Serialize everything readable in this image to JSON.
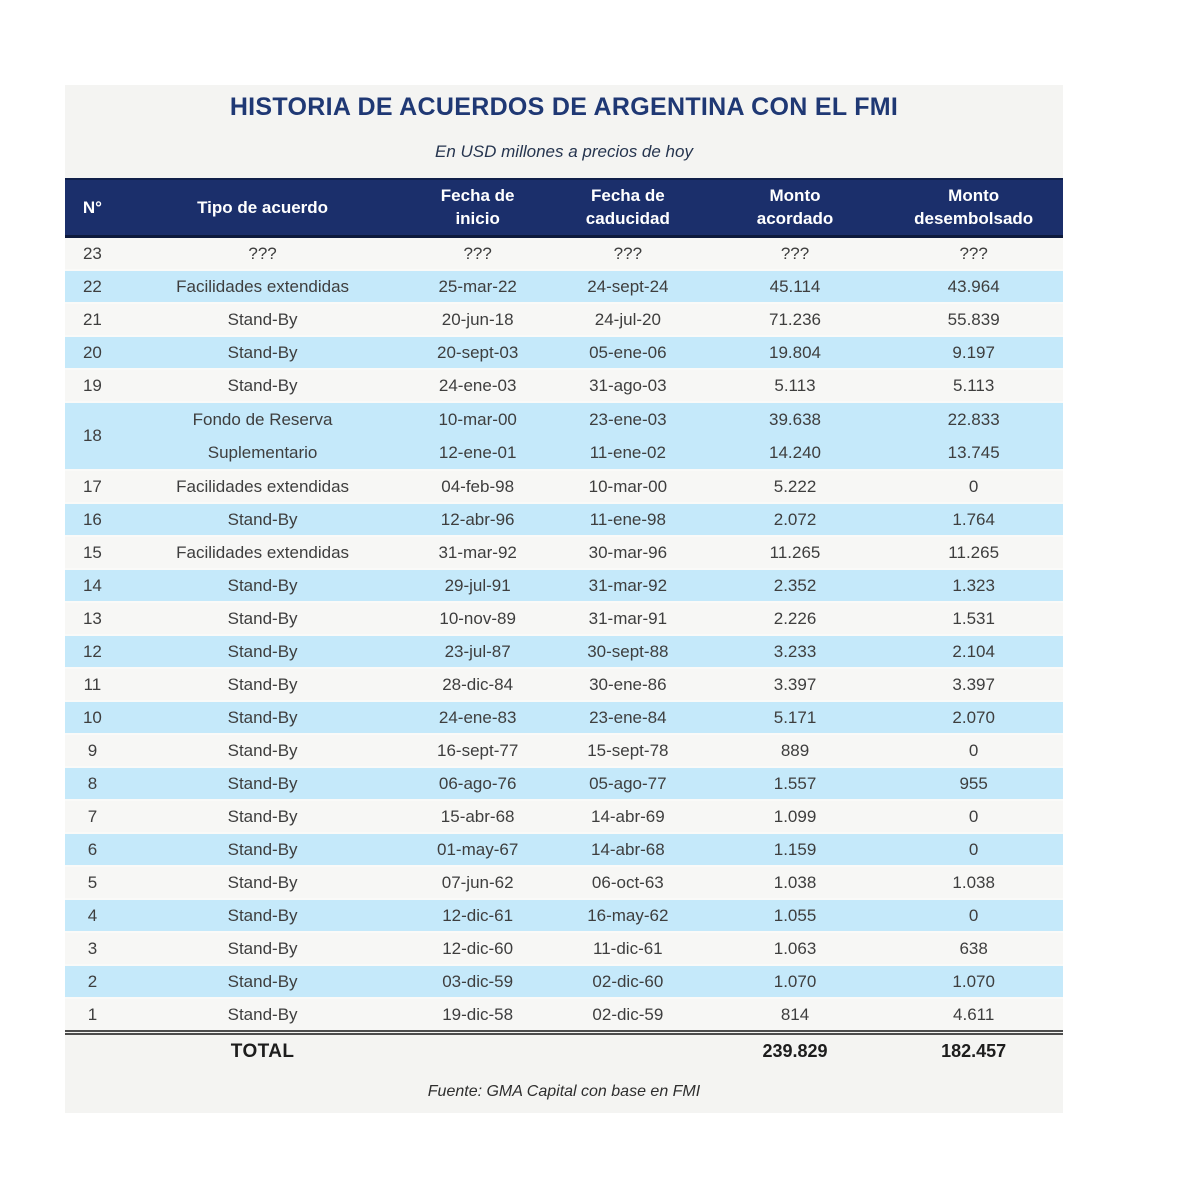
{
  "chart_data": {
    "type": "table",
    "title": "HISTORIA DE ACUERDOS DE ARGENTINA CON EL FMI",
    "subtitle": "En USD millones a precios de hoy",
    "source": "Fuente: GMA Capital con base en FMI",
    "colors": {
      "header_bg": "#1b2f6b",
      "row_blue": "#c5e9fa",
      "row_plain": "#f7f7f5",
      "container_bg": "#f4f4f2",
      "title_color": "#1f3874"
    },
    "columns": [
      {
        "id": "n",
        "label": [
          "N°"
        ]
      },
      {
        "id": "tipo",
        "label": [
          "Tipo de acuerdo"
        ]
      },
      {
        "id": "inicio",
        "label": [
          "Fecha de",
          "inicio"
        ]
      },
      {
        "id": "caducidad",
        "label": [
          "Fecha de",
          "caducidad"
        ]
      },
      {
        "id": "acordado",
        "label": [
          "Monto",
          "acordado"
        ]
      },
      {
        "id": "desembolsado",
        "label": [
          "Monto",
          "desembolsado"
        ]
      }
    ],
    "rows": [
      {
        "n": "23",
        "tipo": "???",
        "inicio": "???",
        "caducidad": "???",
        "acordado": "???",
        "desembolsado": "???"
      },
      {
        "n": "22",
        "tipo": "Facilidades extendidas",
        "inicio": "25-mar-22",
        "caducidad": "24-sept-24",
        "acordado": "45.114",
        "desembolsado": "43.964"
      },
      {
        "n": "21",
        "tipo": "Stand-By",
        "inicio": "20-jun-18",
        "caducidad": "24-jul-20",
        "acordado": "71.236",
        "desembolsado": "55.839"
      },
      {
        "n": "20",
        "tipo": "Stand-By",
        "inicio": "20-sept-03",
        "caducidad": "05-ene-06",
        "acordado": "19.804",
        "desembolsado": "9.197"
      },
      {
        "n": "19",
        "tipo": "Stand-By",
        "inicio": "24-ene-03",
        "caducidad": "31-ago-03",
        "acordado": "5.113",
        "desembolsado": "5.113"
      },
      {
        "n": "18",
        "tipo": [
          "Fondo de Reserva",
          "Suplementario"
        ],
        "inicio": [
          "10-mar-00",
          "12-ene-01"
        ],
        "caducidad": [
          "23-ene-03",
          "11-ene-02"
        ],
        "acordado": [
          "39.638",
          "14.240"
        ],
        "desembolsado": [
          "22.833",
          "13.745"
        ]
      },
      {
        "n": "17",
        "tipo": "Facilidades extendidas",
        "inicio": "04-feb-98",
        "caducidad": "10-mar-00",
        "acordado": "5.222",
        "desembolsado": "0"
      },
      {
        "n": "16",
        "tipo": "Stand-By",
        "inicio": "12-abr-96",
        "caducidad": "11-ene-98",
        "acordado": "2.072",
        "desembolsado": "1.764"
      },
      {
        "n": "15",
        "tipo": "Facilidades extendidas",
        "inicio": "31-mar-92",
        "caducidad": "30-mar-96",
        "acordado": "11.265",
        "desembolsado": "11.265"
      },
      {
        "n": "14",
        "tipo": "Stand-By",
        "inicio": "29-jul-91",
        "caducidad": "31-mar-92",
        "acordado": "2.352",
        "desembolsado": "1.323"
      },
      {
        "n": "13",
        "tipo": "Stand-By",
        "inicio": "10-nov-89",
        "caducidad": "31-mar-91",
        "acordado": "2.226",
        "desembolsado": "1.531"
      },
      {
        "n": "12",
        "tipo": "Stand-By",
        "inicio": "23-jul-87",
        "caducidad": "30-sept-88",
        "acordado": "3.233",
        "desembolsado": "2.104"
      },
      {
        "n": "11",
        "tipo": "Stand-By",
        "inicio": "28-dic-84",
        "caducidad": "30-ene-86",
        "acordado": "3.397",
        "desembolsado": "3.397"
      },
      {
        "n": "10",
        "tipo": "Stand-By",
        "inicio": "24-ene-83",
        "caducidad": "23-ene-84",
        "acordado": "5.171",
        "desembolsado": "2.070"
      },
      {
        "n": "9",
        "tipo": "Stand-By",
        "inicio": "16-sept-77",
        "caducidad": "15-sept-78",
        "acordado": "889",
        "desembolsado": "0"
      },
      {
        "n": "8",
        "tipo": "Stand-By",
        "inicio": "06-ago-76",
        "caducidad": "05-ago-77",
        "acordado": "1.557",
        "desembolsado": "955"
      },
      {
        "n": "7",
        "tipo": "Stand-By",
        "inicio": "15-abr-68",
        "caducidad": "14-abr-69",
        "acordado": "1.099",
        "desembolsado": "0"
      },
      {
        "n": "6",
        "tipo": "Stand-By",
        "inicio": "01-may-67",
        "caducidad": "14-abr-68",
        "acordado": "1.159",
        "desembolsado": "0"
      },
      {
        "n": "5",
        "tipo": "Stand-By",
        "inicio": "07-jun-62",
        "caducidad": "06-oct-63",
        "acordado": "1.038",
        "desembolsado": "1.038"
      },
      {
        "n": "4",
        "tipo": "Stand-By",
        "inicio": "12-dic-61",
        "caducidad": "16-may-62",
        "acordado": "1.055",
        "desembolsado": "0"
      },
      {
        "n": "3",
        "tipo": "Stand-By",
        "inicio": "12-dic-60",
        "caducidad": "11-dic-61",
        "acordado": "1.063",
        "desembolsado": "638"
      },
      {
        "n": "2",
        "tipo": "Stand-By",
        "inicio": "03-dic-59",
        "caducidad": "02-dic-60",
        "acordado": "1.070",
        "desembolsado": "1.070"
      },
      {
        "n": "1",
        "tipo": "Stand-By",
        "inicio": "19-dic-58",
        "caducidad": "02-dic-59",
        "acordado": "814",
        "desembolsado": "4.611"
      }
    ],
    "total": {
      "label": "TOTAL",
      "acordado": "239.829",
      "desembolsado": "182.457"
    }
  }
}
